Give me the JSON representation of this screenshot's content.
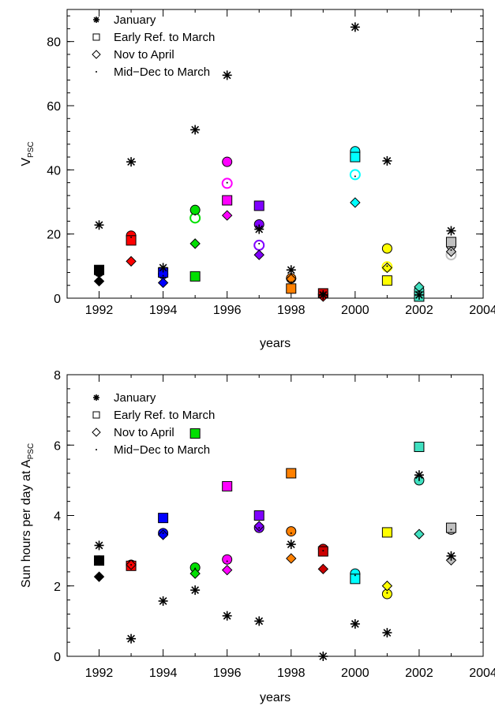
{
  "chart_data": [
    {
      "type": "scatter",
      "title": "",
      "xlabel": "years",
      "ylabel": "V",
      "ylabel_sub": "PSC",
      "xlim": [
        1991,
        2004
      ],
      "ylim": [
        0,
        90
      ],
      "xticks": [
        1992,
        1994,
        1996,
        1998,
        2000,
        2002,
        2004
      ],
      "yticks": [
        0,
        20,
        40,
        60,
        80
      ],
      "grid": false,
      "legend_position": "top-left",
      "legend": [
        {
          "label": "January",
          "marker": "asterisk"
        },
        {
          "label": "Early Ref. to March",
          "marker": "square"
        },
        {
          "label": "Nov to April",
          "marker": "diamond"
        },
        {
          "label": "Mid−Dec to March",
          "marker": "dot"
        }
      ],
      "points": [
        {
          "year": 1992,
          "color": "#000000",
          "january": 22.8,
          "early_ref_to_march": 8.8,
          "nov_to_april": 5.3,
          "mid_dec_to_march": 8.0,
          "circle": 8.2,
          "circle_filled": true
        },
        {
          "year": 1993,
          "color": "#ff0000",
          "january": 42.5,
          "early_ref_to_march": 18.0,
          "nov_to_april": 11.5,
          "mid_dec_to_march": 19.0,
          "circle": 19.5,
          "circle_filled": true
        },
        {
          "year": 1994,
          "color": "#0000ff",
          "january": 9.5,
          "early_ref_to_march": 8.0,
          "nov_to_april": 4.8,
          "mid_dec_to_march": 7.0,
          "circle": 7.5,
          "circle_filled": true
        },
        {
          "year": 1995,
          "color": "#00e000",
          "january": 52.5,
          "early_ref_to_march": 6.8,
          "nov_to_april": 17.0,
          "mid_dec_to_march": 26.0,
          "circle": 27.5,
          "circle_filled": true,
          "circle2": 25.0
        },
        {
          "year": 1996,
          "color": "#ff00ff",
          "january": 69.5,
          "early_ref_to_march": 30.5,
          "nov_to_april": 25.8,
          "mid_dec_to_march": 36.0,
          "circle": 42.5,
          "circle_filled": true,
          "circle2": 35.8
        },
        {
          "year": 1997,
          "color": "#8000ff",
          "january": 21.5,
          "early_ref_to_march": 28.8,
          "nov_to_april": 13.5,
          "mid_dec_to_march": 17.0,
          "circle": 23.0,
          "circle_filled": true,
          "circle2": 16.5
        },
        {
          "year": 1998,
          "color": "#ff8000",
          "january": 8.8,
          "early_ref_to_march": 3.0,
          "nov_to_april": 6.0,
          "mid_dec_to_march": 5.0,
          "circle": 6.2,
          "circle_filled": true
        },
        {
          "year": 1999,
          "color": "#cc0000",
          "january": 1.0,
          "early_ref_to_march": 1.5,
          "nov_to_april": 0.5,
          "mid_dec_to_march": 1.0,
          "circle": 1.2,
          "circle_filled": true
        },
        {
          "year": 2000,
          "color": "#00ffff",
          "january": 84.5,
          "early_ref_to_march": 44.0,
          "nov_to_april": 29.8,
          "mid_dec_to_march": 38.0,
          "circle": 45.8,
          "circle_filled": true,
          "circle2": 38.5
        },
        {
          "year": 2001,
          "color": "#ffff00",
          "january": 42.8,
          "early_ref_to_march": 5.5,
          "nov_to_april": 9.5,
          "mid_dec_to_march": 10.0,
          "circle": 15.5,
          "circle_filled": true,
          "circle2": 9.8
        },
        {
          "year": 2002,
          "color": "#40e0c0",
          "january": 1.0,
          "early_ref_to_march": 0.5,
          "nov_to_april": 3.5,
          "mid_dec_to_march": 1.0,
          "circle": 2.5,
          "circle_filled": true
        },
        {
          "year": 2003,
          "color": "#c0c0c0",
          "january": 21.0,
          "early_ref_to_march": 17.5,
          "nov_to_april": 14.5,
          "mid_dec_to_march": 15.0,
          "circle": 16.5,
          "circle_filled": true,
          "circle2": 13.5
        }
      ]
    },
    {
      "type": "scatter",
      "title": "",
      "xlabel": "years",
      "ylabel": "Sun hours per day at A",
      "ylabel_sub": "PSC",
      "xlim": [
        1991,
        2004
      ],
      "ylim": [
        0,
        8
      ],
      "xticks": [
        1992,
        1994,
        1996,
        1998,
        2000,
        2002,
        2004
      ],
      "yticks": [
        0,
        2,
        4,
        6,
        8
      ],
      "grid": false,
      "legend_position": "top-left",
      "legend": [
        {
          "label": "January",
          "marker": "asterisk"
        },
        {
          "label": "Early Ref. to March",
          "marker": "square"
        },
        {
          "label": "Nov to April",
          "marker": "diamond"
        },
        {
          "label": "Mid−Dec to March",
          "marker": "dot"
        }
      ],
      "points": [
        {
          "year": 1992,
          "color": "#000000",
          "january": 3.15,
          "early_ref_to_march": 2.72,
          "nov_to_april": 2.26,
          "mid_dec_to_march": 2.7,
          "circle": 2.72,
          "circle_filled": true
        },
        {
          "year": 1993,
          "color": "#ff0000",
          "january": 0.5,
          "early_ref_to_march": 2.57,
          "nov_to_april": 2.6,
          "mid_dec_to_march": 2.6,
          "circle": 2.6,
          "circle_filled": true
        },
        {
          "year": 1994,
          "color": "#0000ff",
          "january": 1.57,
          "early_ref_to_march": 3.93,
          "nov_to_april": 3.45,
          "mid_dec_to_march": 3.5,
          "circle": 3.5,
          "circle_filled": true
        },
        {
          "year": 1995,
          "color": "#00e000",
          "january": 1.88,
          "early_ref_to_march": 6.33,
          "nov_to_april": 2.35,
          "mid_dec_to_march": 2.5,
          "circle": 2.52,
          "circle_filled": true
        },
        {
          "year": 1996,
          "color": "#ff00ff",
          "january": 1.15,
          "early_ref_to_march": 4.83,
          "nov_to_april": 2.45,
          "mid_dec_to_march": 2.7,
          "circle": 2.75,
          "circle_filled": true
        },
        {
          "year": 1997,
          "color": "#8000ff",
          "january": 1.0,
          "early_ref_to_march": 4.0,
          "nov_to_april": 3.7,
          "mid_dec_to_march": 3.65,
          "circle": 3.65,
          "circle_filled": true
        },
        {
          "year": 1998,
          "color": "#ff8000",
          "january": 3.18,
          "early_ref_to_march": 5.2,
          "nov_to_april": 2.78,
          "mid_dec_to_march": 3.5,
          "circle": 3.55,
          "circle_filled": true
        },
        {
          "year": 1999,
          "color": "#cc0000",
          "january": 0.0,
          "early_ref_to_march": 2.98,
          "nov_to_april": 2.48,
          "mid_dec_to_march": 3.0,
          "circle": 3.05,
          "circle_filled": true
        },
        {
          "year": 2000,
          "color": "#00ffff",
          "january": 0.92,
          "early_ref_to_march": 2.2,
          "nov_to_april": null,
          "mid_dec_to_march": 2.3,
          "circle": 2.35,
          "circle_filled": true
        },
        {
          "year": 2001,
          "color": "#ffff00",
          "january": 0.67,
          "early_ref_to_march": 3.52,
          "nov_to_april": 2.0,
          "mid_dec_to_march": 1.8,
          "circle": 1.77,
          "circle_filled": true
        },
        {
          "year": 2002,
          "color": "#40e0c0",
          "january": 5.15,
          "early_ref_to_march": 5.95,
          "nov_to_april": 3.47,
          "mid_dec_to_march": 5.0,
          "circle": 5.0,
          "circle_filled": true
        },
        {
          "year": 2003,
          "color": "#c0c0c0",
          "january": 2.85,
          "early_ref_to_march": 3.65,
          "nov_to_april": 2.73,
          "mid_dec_to_march": 3.6,
          "circle": 3.6,
          "circle_filled": true
        }
      ]
    }
  ]
}
